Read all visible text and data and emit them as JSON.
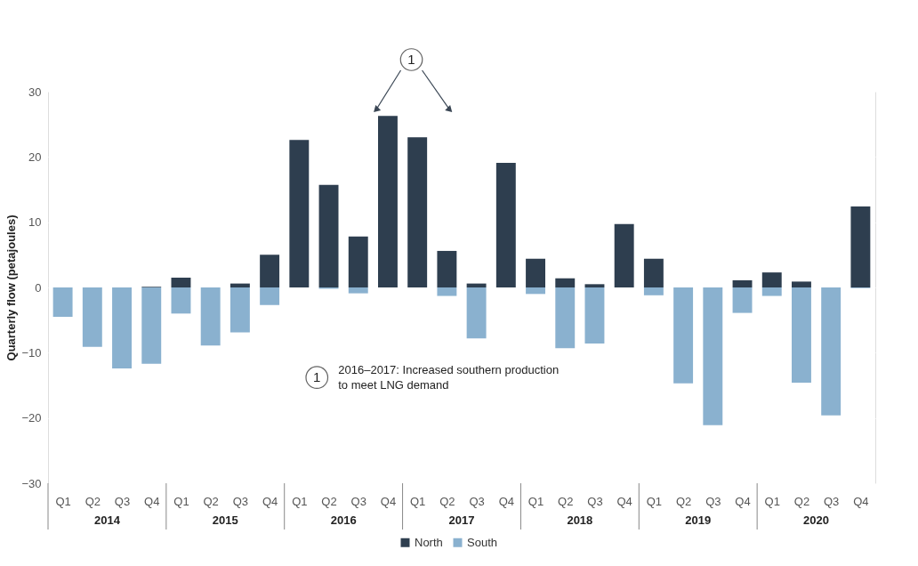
{
  "chart_data": {
    "type": "bar",
    "ylabel": "Quarterly flow (petajoules)",
    "categories": [
      "Q1",
      "Q2",
      "Q3",
      "Q4",
      "Q1",
      "Q2",
      "Q3",
      "Q4",
      "Q1",
      "Q2",
      "Q3",
      "Q4",
      "Q1",
      "Q2",
      "Q3",
      "Q4",
      "Q1",
      "Q2",
      "Q3",
      "Q4",
      "Q1",
      "Q2",
      "Q3",
      "Q4",
      "Q1",
      "Q2",
      "Q3",
      "Q4"
    ],
    "series": [
      {
        "name": "North",
        "color": "#2e3e4f",
        "values": [
          null,
          null,
          null,
          0.1,
          1.5,
          null,
          0.6,
          5.0,
          22.6,
          15.7,
          7.8,
          26.3,
          23.0,
          5.6,
          0.6,
          19.1,
          4.4,
          1.4,
          0.5,
          9.7,
          4.4,
          null,
          null,
          1.1,
          2.3,
          0.9,
          null,
          12.4
        ]
      },
      {
        "name": "South",
        "color": "#8ab1cf",
        "values": [
          -4.5,
          -9.1,
          -12.4,
          -11.7,
          -4.0,
          -8.9,
          -6.9,
          -2.7,
          null,
          -0.2,
          -0.9,
          null,
          null,
          -1.3,
          -7.8,
          null,
          -1.0,
          -9.3,
          -8.6,
          null,
          -1.2,
          -14.7,
          -21.1,
          -3.9,
          -1.3,
          -14.6,
          -19.6,
          -0.1
        ]
      }
    ],
    "ylim": [
      -30,
      30
    ],
    "yticks": [
      -30,
      -20,
      -10,
      0,
      10,
      20,
      30
    ],
    "grid": "y",
    "legend": "bottom",
    "annotations": [
      "2014",
      "2015",
      "2016",
      "2017",
      "2018",
      "2019",
      "2020",
      "1",
      "1",
      "2016–2017: Increased southern production to meet LNG demand"
    ]
  }
}
